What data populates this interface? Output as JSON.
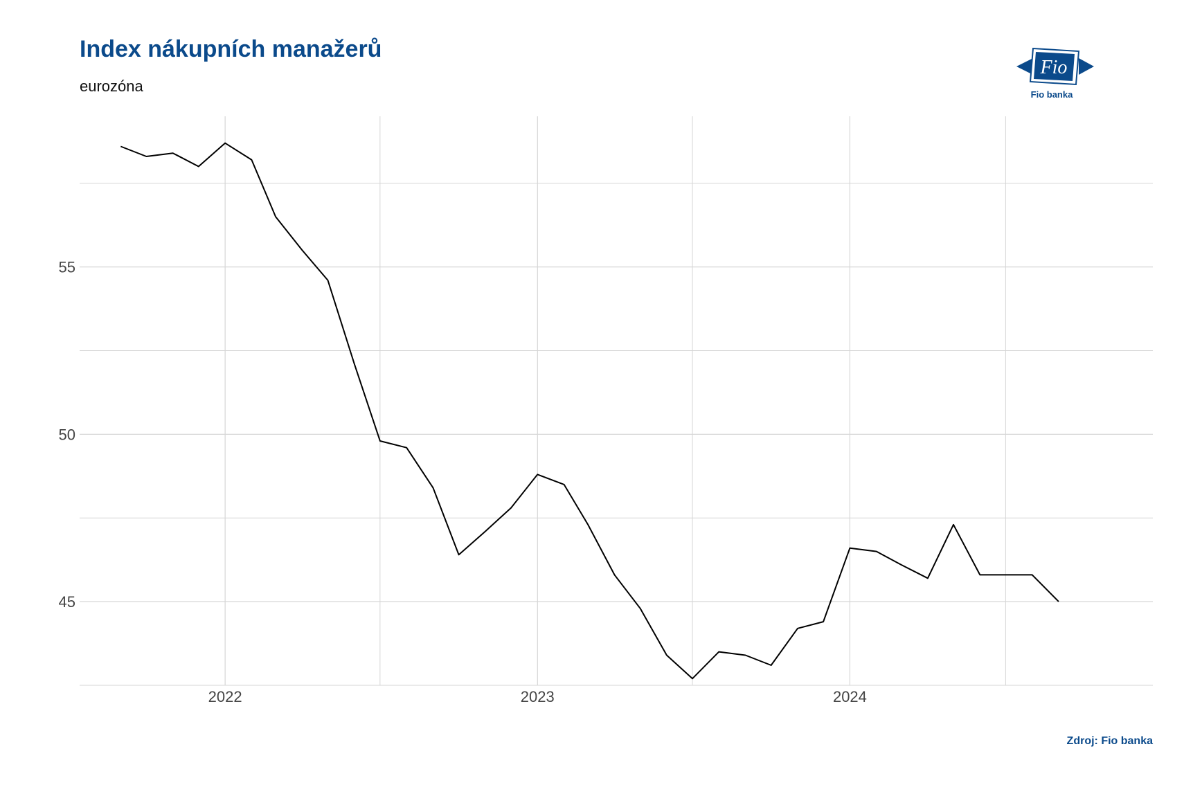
{
  "header": {
    "title": "Index nákupních manažerů",
    "subtitle": "eurozóna"
  },
  "logo": {
    "mark_text": "Fio",
    "caption": "Fio banka",
    "color": "#0b4a8b"
  },
  "footer": {
    "source": "Zdroj: Fio banka"
  },
  "chart_data": {
    "type": "line",
    "title": "Index nákupních manažerů",
    "subtitle": "eurozóna",
    "xlabel": "",
    "ylabel": "",
    "x_ticks": [
      "2022",
      "2023",
      "2024"
    ],
    "y_ticks": [
      45,
      50,
      55
    ],
    "ylim": [
      42.5,
      59.5
    ],
    "xlim": [
      "2021-07-15",
      "2024-12-20"
    ],
    "grid": true,
    "line_color": "#000000",
    "series": [
      {
        "x": [
          "2021-09-01",
          "2021-10-01",
          "2021-11-01",
          "2021-12-01",
          "2022-01-01",
          "2022-02-01",
          "2022-03-01",
          "2022-04-01",
          "2022-05-01",
          "2022-06-01",
          "2022-07-01",
          "2022-08-01",
          "2022-09-01",
          "2022-10-01",
          "2022-11-01",
          "2022-12-01",
          "2023-01-01",
          "2023-02-01",
          "2023-03-01",
          "2023-04-01",
          "2023-05-01",
          "2023-06-01",
          "2023-07-01",
          "2023-08-01",
          "2023-09-01",
          "2023-10-01",
          "2023-11-01",
          "2023-12-01",
          "2024-01-01",
          "2024-02-01",
          "2024-03-01",
          "2024-04-01",
          "2024-05-01",
          "2024-06-01",
          "2024-07-01",
          "2024-08-01",
          "2024-09-01",
          "2024-10-01",
          "2024-11-01"
        ],
        "values": [
          58.6,
          58.3,
          58.4,
          58.0,
          58.7,
          58.2,
          56.5,
          55.5,
          54.6,
          52.1,
          49.8,
          49.6,
          48.4,
          46.4,
          47.1,
          47.8,
          48.8,
          48.5,
          47.3,
          45.8,
          44.8,
          43.4,
          42.7,
          43.5,
          43.4,
          43.1,
          44.2,
          44.4,
          46.6,
          46.5,
          46.1,
          45.7,
          47.3,
          45.8,
          45.8,
          45.8,
          45.0,
          null,
          null
        ]
      }
    ]
  }
}
